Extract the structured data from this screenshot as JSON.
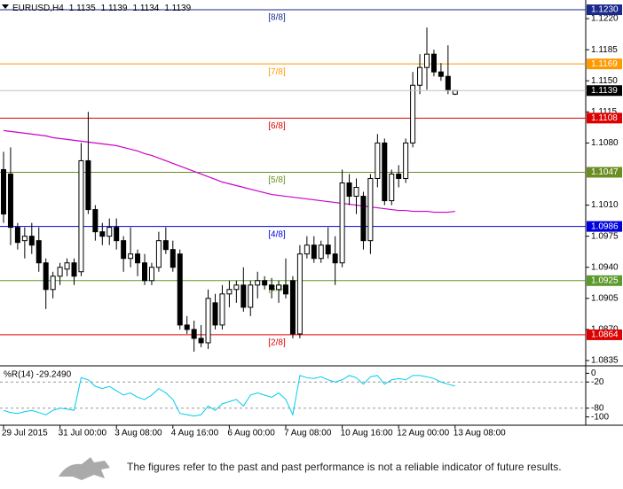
{
  "chart_data": [
    {
      "type": "candlestick",
      "title": "EURUSD,H4",
      "categories": [
        "29 Jul 2015",
        null,
        null,
        null,
        null,
        null,
        null,
        null,
        "31 Jul 00:00",
        null,
        null,
        null,
        null,
        null,
        null,
        null,
        "3 Aug 08:00",
        null,
        null,
        null,
        null,
        null,
        null,
        null,
        "4 Aug 16:00",
        null,
        null,
        null,
        null,
        null,
        null,
        null,
        "6 Aug 00:00",
        null,
        null,
        null,
        null,
        null,
        null,
        null,
        "7 Aug 08:00",
        null,
        null,
        null,
        null,
        null,
        null,
        null,
        "10 Aug 16:00",
        null,
        null,
        null,
        null,
        null,
        null,
        null,
        "12 Aug 00:00",
        null,
        null,
        null,
        null,
        null,
        null,
        null,
        "13 Aug 08:00"
      ],
      "open": [
        1.105,
        1.1045,
        1.0985,
        1.097,
        1.0975,
        1.097,
        1.0945,
        1.0915,
        1.093,
        1.0938,
        1.0945,
        1.0935,
        1.106,
        1.1005,
        1.098,
        1.0975,
        1.0985,
        1.097,
        1.095,
        1.0955,
        1.0945,
        1.0925,
        1.094,
        1.097,
        1.096,
        1.0955,
        1.0875,
        1.087,
        1.086,
        1.0855,
        1.09,
        1.0875,
        1.091,
        1.0915,
        1.092,
        1.0895,
        1.092,
        1.0925,
        1.092,
        1.0915,
        1.092,
        1.0925,
        1.0865,
        1.0955,
        1.0965,
        1.095,
        1.0965,
        1.0955,
        1.0945,
        1.1035,
        1.102,
        1.102,
        1.097,
        1.104,
        1.108,
        1.1015,
        1.1045,
        1.104,
        1.108,
        1.1145,
        1.1165,
        1.118,
        1.116,
        1.1155,
        1.1135
      ],
      "high": [
        1.107,
        1.1075,
        1.099,
        1.0985,
        1.099,
        1.0985,
        1.095,
        1.0935,
        1.0945,
        1.095,
        1.095,
        1.108,
        1.1115,
        1.101,
        1.099,
        1.0995,
        1.0995,
        1.0975,
        1.0985,
        1.096,
        1.0955,
        1.0945,
        1.098,
        1.0985,
        1.097,
        1.096,
        1.0885,
        1.088,
        1.0875,
        1.0915,
        1.091,
        1.092,
        1.0925,
        1.0925,
        1.094,
        1.0925,
        1.0935,
        1.093,
        1.0928,
        1.0925,
        1.095,
        1.093,
        1.0965,
        1.0975,
        1.0975,
        1.097,
        1.0985,
        1.0975,
        1.105,
        1.1045,
        1.104,
        1.1025,
        1.1045,
        1.109,
        1.1085,
        1.105,
        1.1055,
        1.1085,
        1.116,
        1.118,
        1.121,
        1.1185,
        1.117,
        1.119,
        1.1139
      ],
      "low": [
        1.099,
        1.0965,
        1.096,
        1.095,
        1.0955,
        1.0935,
        1.0893,
        1.0905,
        1.092,
        1.093,
        1.092,
        1.093,
        1.1,
        1.097,
        1.0965,
        1.0965,
        1.096,
        1.0935,
        1.094,
        1.093,
        1.092,
        1.092,
        1.0935,
        1.0955,
        1.0935,
        1.087,
        1.0865,
        1.0845,
        1.085,
        1.0848,
        1.087,
        1.087,
        1.0895,
        1.09,
        1.089,
        1.0885,
        1.0905,
        1.0915,
        1.0905,
        1.09,
        1.0905,
        1.086,
        1.086,
        1.095,
        1.0945,
        1.0945,
        1.095,
        1.092,
        1.094,
        1.101,
        1.1,
        1.096,
        1.0955,
        1.103,
        1.101,
        1.101,
        1.103,
        1.1035,
        1.1075,
        1.1135,
        1.114,
        1.1155,
        1.115,
        1.1135,
        1.1134
      ],
      "close": [
        1.1,
        1.0985,
        1.0968,
        1.0975,
        1.0965,
        1.0945,
        1.0915,
        1.093,
        1.094,
        1.0945,
        1.093,
        1.106,
        1.1005,
        1.098,
        1.0975,
        1.0985,
        1.097,
        1.095,
        1.0955,
        1.0945,
        1.0925,
        1.094,
        1.097,
        1.096,
        1.094,
        1.0875,
        1.087,
        1.086,
        1.0855,
        1.0905,
        1.0875,
        1.091,
        1.0915,
        1.092,
        1.0895,
        1.092,
        1.0925,
        1.092,
        1.0915,
        1.092,
        1.091,
        1.0865,
        1.0955,
        1.0965,
        1.095,
        1.0965,
        1.0955,
        1.0945,
        1.1035,
        1.102,
        1.103,
        1.097,
        1.104,
        1.108,
        1.1015,
        1.1045,
        1.104,
        1.108,
        1.1145,
        1.1165,
        1.118,
        1.116,
        1.1155,
        1.114,
        1.1139
      ],
      "ma": {
        "color": "#cc00cc",
        "values": [
          1.1094,
          1.1093,
          1.1092,
          1.1091,
          1.109,
          1.1089,
          1.1088,
          1.1086,
          1.1085,
          1.1084,
          1.1083,
          1.1082,
          1.1081,
          1.108,
          1.1079,
          1.1078,
          1.1077,
          1.1075,
          1.1073,
          1.1071,
          1.1068,
          1.1066,
          1.1063,
          1.106,
          1.1057,
          1.1054,
          1.1051,
          1.1048,
          1.1045,
          1.1042,
          1.1039,
          1.1036,
          1.1034,
          1.1032,
          1.103,
          1.1028,
          1.1026,
          1.1024,
          1.1022,
          1.1021,
          1.102,
          1.1019,
          1.1018,
          1.1017,
          1.1016,
          1.1015,
          1.1014,
          1.1013,
          1.1012,
          1.1011,
          1.101,
          1.1009,
          1.1008,
          1.1007,
          1.1006,
          1.1005,
          1.1004,
          1.1004,
          1.1003,
          1.1003,
          1.1003,
          1.1002,
          1.1002,
          1.1002,
          1.1003
        ]
      },
      "levels": [
        {
          "name": "[8/8]",
          "value": 1.123,
          "label": "1.1230",
          "color": "#1a2a8c"
        },
        {
          "name": "[7/8]",
          "value": 1.1169,
          "label": "1.1169",
          "color": "#ff9900"
        },
        {
          "name": "[6/8]",
          "value": 1.1108,
          "label": "1.1108",
          "color": "#dd0000"
        },
        {
          "name": "[5/8]",
          "value": 1.1047,
          "label": "1.1047",
          "color": "#6b8e23"
        },
        {
          "name": "[4/8]",
          "value": 1.0986,
          "label": "1.0986",
          "color": "#0000dd"
        },
        {
          "name": "[3/8]",
          "value": 1.0925,
          "label": "1.0925",
          "color": "#5c9a2e"
        },
        {
          "name": "[2/8]",
          "value": 1.0864,
          "label": "1.0864",
          "color": "#dd0000"
        }
      ],
      "ylim": [
        1.0832,
        1.1241
      ],
      "yticks": [
        {
          "value": 1.122,
          "label": "1.1220"
        },
        1.1185,
        {
          "value": 1.115,
          "label": "1.1150"
        },
        1.1115,
        {
          "value": 1.108,
          "label": "1.1080"
        },
        {
          "value": 1.101,
          "label": "1.1010"
        },
        1.0975,
        {
          "value": 1.094,
          "label": "1.0940"
        },
        1.0905,
        {
          "value": 1.087,
          "label": "1.0870"
        },
        1.0835
      ]
    },
    {
      "type": "line",
      "title": "%R(14) -29.2490",
      "series": [
        {
          "name": "%R(14)",
          "color": "#00ccee",
          "values": [
            -85,
            -90,
            -92,
            -88,
            -85,
            -90,
            -95,
            -85,
            -80,
            -82,
            -85,
            -10,
            -15,
            -30,
            -35,
            -30,
            -40,
            -50,
            -45,
            -55,
            -60,
            -50,
            -35,
            -45,
            -60,
            -92,
            -95,
            -98,
            -95,
            -75,
            -85,
            -70,
            -65,
            -60,
            -75,
            -50,
            -45,
            -50,
            -55,
            -45,
            -60,
            -95,
            -5,
            -10,
            -12,
            -8,
            -15,
            -20,
            -15,
            -5,
            -10,
            -25,
            -8,
            -5,
            -25,
            -15,
            -12,
            -15,
            -5,
            -5,
            -8,
            -12,
            -20,
            -25,
            -29.249
          ]
        }
      ],
      "levels": [
        -20,
        -80
      ],
      "ylim": [
        -117,
        15
      ],
      "yticks": [
        0,
        -20,
        -80,
        -100
      ]
    }
  ],
  "footer": {
    "disclaimer": "The figures refer to the past and past performance is not a reliable indicator of future results."
  }
}
